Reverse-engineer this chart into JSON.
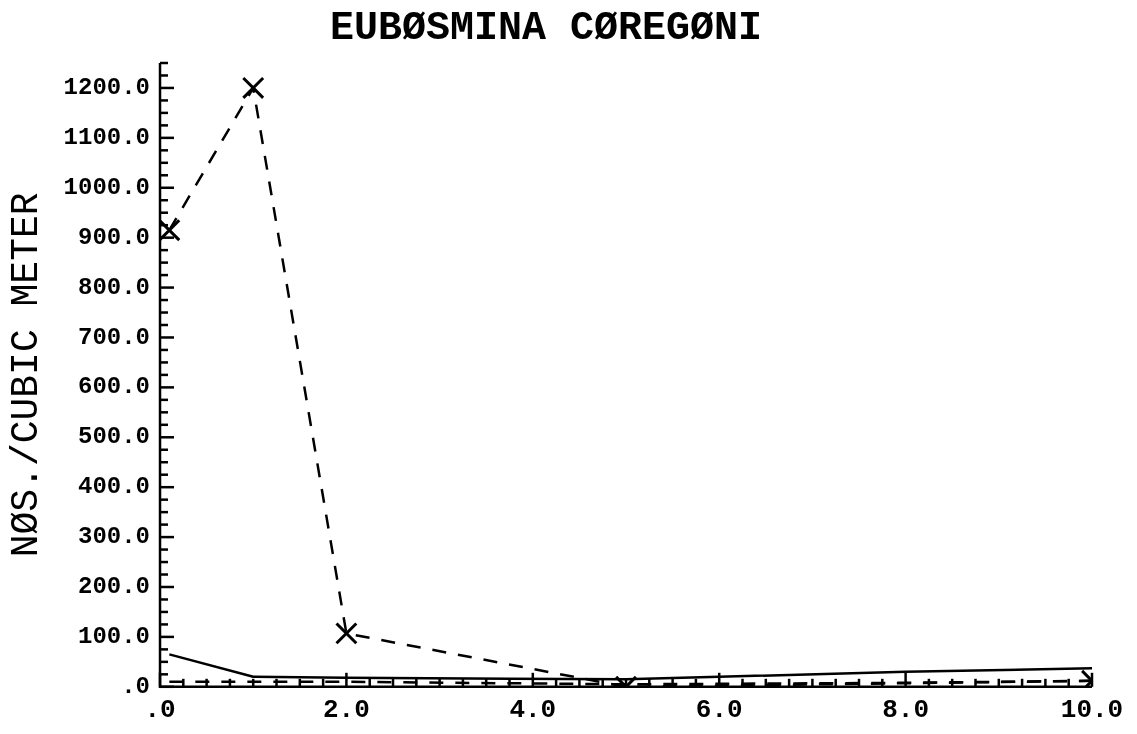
{
  "chart_data": {
    "type": "line",
    "title": "EUBØSMINA CØREGØNI",
    "ylabel": "NØS./CUBIC METER",
    "xlim": [
      0,
      10
    ],
    "xticks": [
      {
        "value": 0,
        "label": ".0"
      },
      {
        "value": 0.25,
        "label": null
      },
      {
        "value": 0.5,
        "label": null
      },
      {
        "value": 0.75,
        "label": null
      },
      {
        "value": 1,
        "label": null
      },
      {
        "value": 1.25,
        "label": null
      },
      {
        "value": 1.5,
        "label": null
      },
      {
        "value": 1.75,
        "label": null
      },
      {
        "value": 2,
        "label": "2.0"
      },
      {
        "value": 2.25,
        "label": null
      },
      {
        "value": 2.5,
        "label": null
      },
      {
        "value": 2.75,
        "label": null
      },
      {
        "value": 3,
        "label": null
      },
      {
        "value": 3.25,
        "label": null
      },
      {
        "value": 3.5,
        "label": null
      },
      {
        "value": 3.75,
        "label": null
      },
      {
        "value": 4,
        "label": "4.0"
      },
      {
        "value": 4.25,
        "label": null
      },
      {
        "value": 4.5,
        "label": null
      },
      {
        "value": 4.75,
        "label": null
      },
      {
        "value": 5,
        "label": null
      },
      {
        "value": 5.25,
        "label": null
      },
      {
        "value": 5.5,
        "label": null
      },
      {
        "value": 5.75,
        "label": null
      },
      {
        "value": 6,
        "label": "6.0"
      },
      {
        "value": 6.25,
        "label": null
      },
      {
        "value": 6.5,
        "label": null
      },
      {
        "value": 6.75,
        "label": null
      },
      {
        "value": 7,
        "label": null
      },
      {
        "value": 7.25,
        "label": null
      },
      {
        "value": 7.5,
        "label": null
      },
      {
        "value": 7.75,
        "label": null
      },
      {
        "value": 8,
        "label": "8.0"
      },
      {
        "value": 8.25,
        "label": null
      },
      {
        "value": 8.5,
        "label": null
      },
      {
        "value": 8.75,
        "label": null
      },
      {
        "value": 9,
        "label": null
      },
      {
        "value": 9.25,
        "label": null
      },
      {
        "value": 9.5,
        "label": null
      },
      {
        "value": 9.75,
        "label": null
      },
      {
        "value": 10,
        "label": "10.0"
      }
    ],
    "ylim": [
      0,
      1250
    ],
    "yticks": [
      {
        "value": 0,
        "label": ".0"
      },
      {
        "value": 25,
        "label": null
      },
      {
        "value": 50,
        "label": null
      },
      {
        "value": 75,
        "label": null
      },
      {
        "value": 100,
        "label": "100.0"
      },
      {
        "value": 125,
        "label": null
      },
      {
        "value": 150,
        "label": null
      },
      {
        "value": 175,
        "label": null
      },
      {
        "value": 200,
        "label": "200.0"
      },
      {
        "value": 225,
        "label": null
      },
      {
        "value": 250,
        "label": null
      },
      {
        "value": 275,
        "label": null
      },
      {
        "value": 300,
        "label": "300.0"
      },
      {
        "value": 325,
        "label": null
      },
      {
        "value": 350,
        "label": null
      },
      {
        "value": 375,
        "label": null
      },
      {
        "value": 400,
        "label": "400.0"
      },
      {
        "value": 425,
        "label": null
      },
      {
        "value": 450,
        "label": null
      },
      {
        "value": 475,
        "label": null
      },
      {
        "value": 500,
        "label": "500.0"
      },
      {
        "value": 525,
        "label": null
      },
      {
        "value": 550,
        "label": null
      },
      {
        "value": 575,
        "label": null
      },
      {
        "value": 600,
        "label": "600.0"
      },
      {
        "value": 625,
        "label": null
      },
      {
        "value": 650,
        "label": null
      },
      {
        "value": 675,
        "label": null
      },
      {
        "value": 700,
        "label": "700.0"
      },
      {
        "value": 725,
        "label": null
      },
      {
        "value": 750,
        "label": null
      },
      {
        "value": 775,
        "label": null
      },
      {
        "value": 800,
        "label": "800.0"
      },
      {
        "value": 825,
        "label": null
      },
      {
        "value": 850,
        "label": null
      },
      {
        "value": 875,
        "label": null
      },
      {
        "value": 900,
        "label": "900.0"
      },
      {
        "value": 925,
        "label": null
      },
      {
        "value": 950,
        "label": null
      },
      {
        "value": 975,
        "label": null
      },
      {
        "value": 1000,
        "label": "1000.0"
      },
      {
        "value": 1025,
        "label": null
      },
      {
        "value": 1050,
        "label": null
      },
      {
        "value": 1075,
        "label": null
      },
      {
        "value": 1100,
        "label": "1100.0"
      },
      {
        "value": 1125,
        "label": null
      },
      {
        "value": 1150,
        "label": null
      },
      {
        "value": 1175,
        "label": null
      },
      {
        "value": 1200,
        "label": "1200.0"
      },
      {
        "value": 1225,
        "label": null
      },
      {
        "value": 1250,
        "label": null
      }
    ],
    "series": [
      {
        "color": "#000000",
        "x": [
          0.1,
          1,
          2,
          5,
          10
        ],
        "values": [
          915,
          1200,
          107,
          0,
          12
        ],
        "marker": "cross",
        "line_style": "dashed"
      },
      {
        "color": "#000000",
        "x": [
          0.1,
          1,
          2,
          5,
          6,
          8,
          10
        ],
        "values": [
          65,
          20,
          18,
          15,
          20,
          30,
          37
        ],
        "marker": "none",
        "line_style": "solid"
      },
      {
        "color": "#000000",
        "x": [
          0.1,
          2,
          5,
          8,
          10
        ],
        "values": [
          10,
          10,
          5,
          8,
          12
        ],
        "marker": "none",
        "line_style": "dashed"
      }
    ]
  }
}
